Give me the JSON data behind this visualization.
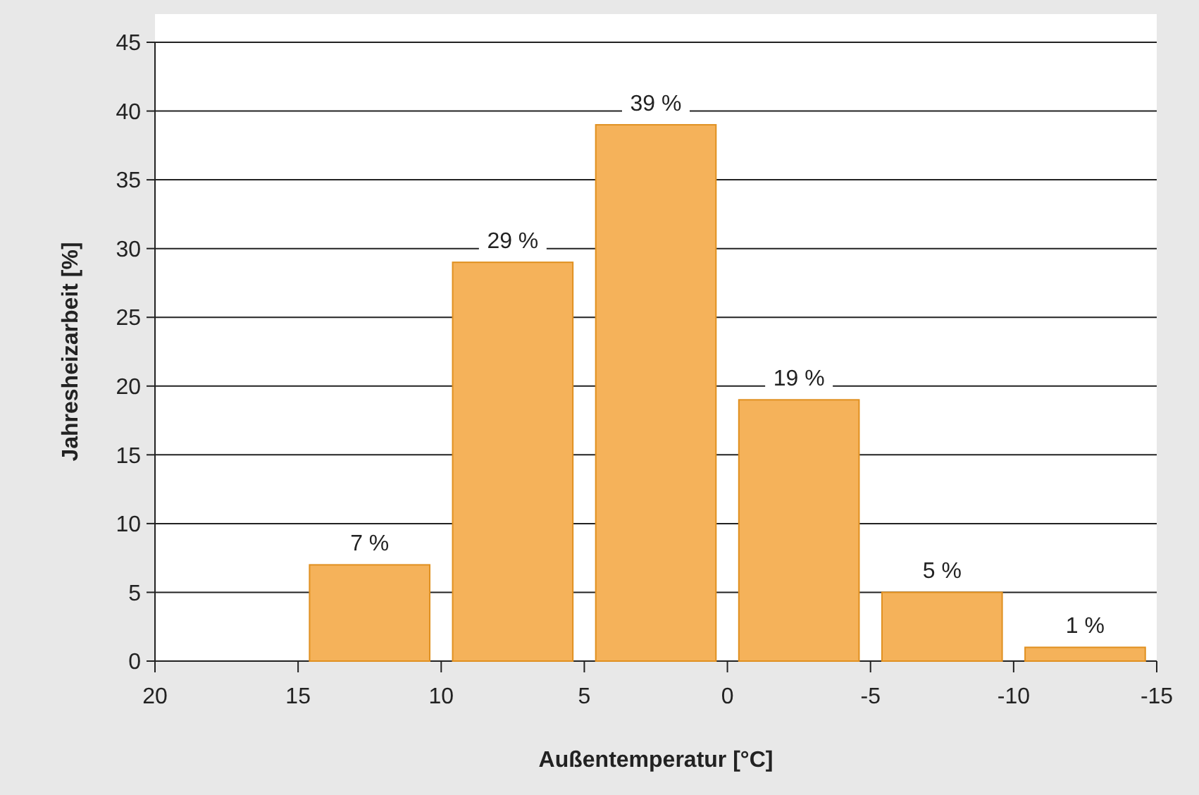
{
  "chart_data": {
    "type": "histogram",
    "xlabel": "Außentemperatur [°C]",
    "ylabel": "Jahresheizarbeit [%]",
    "bins": [
      15,
      10,
      5,
      0,
      -5,
      -10,
      -15
    ],
    "values": [
      7,
      29,
      39,
      19,
      5,
      1
    ],
    "value_labels": [
      "7 %",
      "29 %",
      "39 %",
      "19 %",
      "5 %",
      "1 %"
    ],
    "color": "#f5b25a",
    "xlim": [
      20,
      -15
    ],
    "xticks": [
      20,
      15,
      10,
      5,
      0,
      -5,
      -10,
      -15
    ],
    "ylim": [
      0,
      45
    ],
    "yticks": [
      0,
      5,
      10,
      15,
      20,
      25,
      30,
      35,
      40,
      45
    ],
    "grid": "y"
  }
}
